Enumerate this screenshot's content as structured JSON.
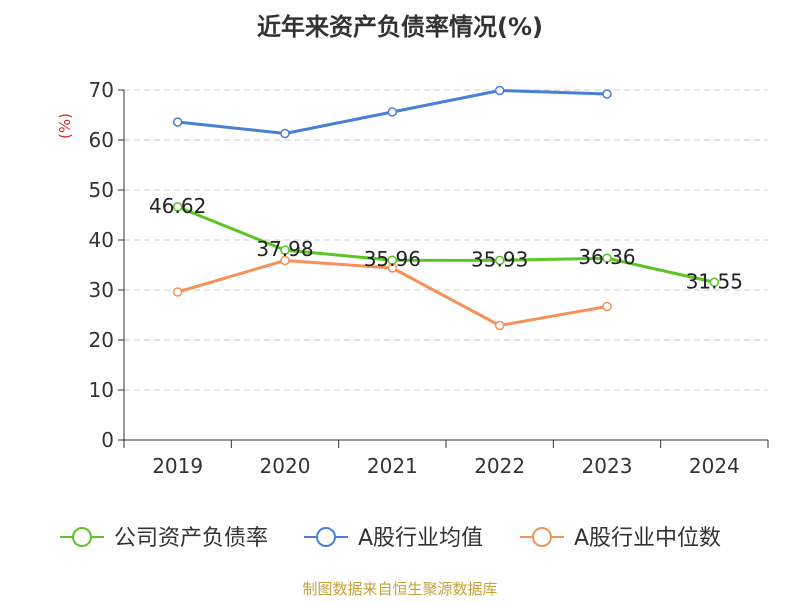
{
  "chart_data": {
    "type": "line",
    "title": "近年来资产负债率情况(%)",
    "ylabel": "(%)",
    "xlabel": "",
    "categories": [
      "2019",
      "2020",
      "2021",
      "2022",
      "2023",
      "2024"
    ],
    "ylim": [
      0,
      70
    ],
    "yticks": [
      "0",
      "10",
      "20",
      "30",
      "40",
      "50",
      "60",
      "70"
    ],
    "grid": "horizontal dashed",
    "legend_position": "bottom",
    "series": [
      {
        "name": "公司资产负债率",
        "color": "#5cc425",
        "values": [
          46.62,
          37.98,
          35.96,
          35.93,
          36.36,
          31.55
        ],
        "labels": [
          "46.62",
          "37.98",
          "35.96",
          "35.93",
          "36.36",
          "31.55"
        ]
      },
      {
        "name": "A股行业均值",
        "color": "#4a7fd6",
        "values": [
          63.6,
          61.3,
          65.6,
          69.9,
          69.2,
          null
        ]
      },
      {
        "name": "A股行业中位数",
        "color": "#f5925c",
        "values": [
          29.6,
          35.9,
          34.4,
          22.9,
          26.7,
          null
        ]
      }
    ],
    "source": "制图数据来自恒生聚源数据库",
    "source_color": "#c8a13b",
    "title_color": "#333333",
    "ylabel_color": "#d32f2f"
  }
}
